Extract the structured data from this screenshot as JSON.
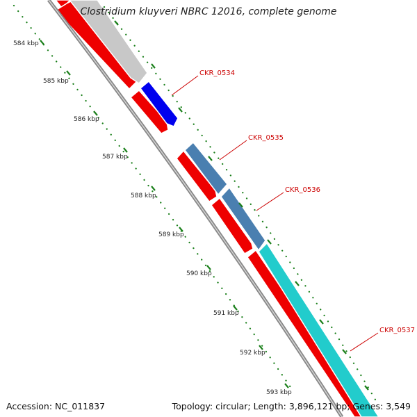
{
  "header": {
    "title": "Clostridium kluyveri NBRC 12016, complete genome"
  },
  "footer": {
    "accession": "Accession: NC_011837",
    "summary": "Topology: circular; Length: 3,896,121 bp; Genes: 3,549"
  },
  "scale": {
    "ticks": [
      "584 kbp",
      "585 kbp",
      "586 kbp",
      "587 kbp",
      "588 kbp",
      "589 kbp",
      "590 kbp",
      "591 kbp",
      "592 kbp",
      "593 kbp"
    ]
  },
  "genes": [
    {
      "label": "CKR_0534",
      "color": "#0000ee"
    },
    {
      "label": "CKR_0535",
      "color": "#4a7fb0"
    },
    {
      "label": "CKR_0536",
      "color": "#4a7fb0"
    },
    {
      "label": "CKR_0537",
      "color": "#22cccc"
    }
  ],
  "colors": {
    "forward_cds": "#ee0000",
    "unlabeled_feature": "#c8c8c8",
    "backbone": "#888888",
    "scale_marks": "#1a7f1a",
    "label_text": "#cc0000"
  }
}
